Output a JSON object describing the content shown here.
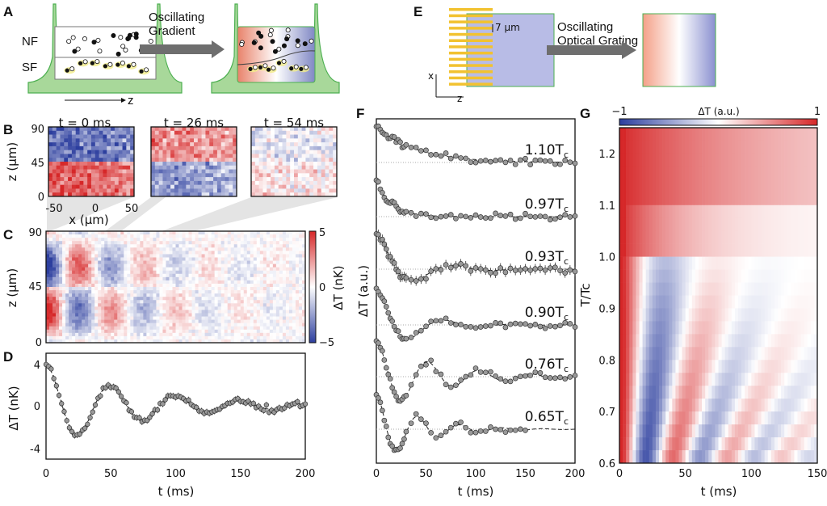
{
  "panels": {
    "A": {
      "label": "A",
      "nf": "NF",
      "sf": "SF",
      "axis": "z",
      "arrow_text_1": "Oscillating",
      "arrow_text_2": "Gradient"
    },
    "B": {
      "label": "B",
      "titles": [
        "t = 0 ms",
        "t = 26 ms",
        "t = 54 ms"
      ],
      "yticks": [
        "90",
        "45",
        "0"
      ],
      "xticks": [
        "-50",
        "0",
        "50"
      ],
      "ylabel": "z (μm)",
      "xlabel": "x (μm)"
    },
    "C": {
      "label": "C",
      "yticks": [
        "90",
        "45",
        "0"
      ],
      "ylabel": "z (μm)",
      "cbar_ticks": [
        "5",
        "0",
        "−5"
      ],
      "cbar_label": "ΔT (nK)"
    },
    "D": {
      "label": "D",
      "yticks": [
        "4",
        "0",
        "-4"
      ],
      "xticks": [
        "0",
        "50",
        "100",
        "150",
        "200"
      ],
      "ylabel": "ΔT (nK)",
      "xlabel": "t (ms)"
    },
    "E": {
      "label": "E",
      "spacing": "7 μm",
      "arrow_text_1": "Oscillating",
      "arrow_text_2": "Optical Grating",
      "axis_x": "x",
      "axis_z": "z"
    },
    "F": {
      "label": "F",
      "ylabel": "ΔT (a.u.)",
      "xlabel": "t (ms)",
      "xticks": [
        "0",
        "50",
        "100",
        "150",
        "200"
      ]
    },
    "G": {
      "label": "G",
      "cbar_min": "−1",
      "cbar_max": "1",
      "cbar_label": "ΔT (a.u.)",
      "ylabel": "T/Tc",
      "xlabel": "t (ms)",
      "xticks": [
        "0",
        "50",
        "100",
        "150"
      ],
      "yticks": [
        "1.2",
        "1.1",
        "1.0",
        "0.9",
        "0.8",
        "0.7",
        "0.6"
      ]
    }
  },
  "colors": {
    "red": "#d62728",
    "blue": "#2c3e9e",
    "green": "#5cb85c",
    "marker": "#888888"
  },
  "chart_data": [
    {
      "panel": "D",
      "type": "scatter",
      "title": "",
      "xlabel": "t (ms)",
      "ylabel": "ΔT (nK)",
      "xlim": [
        0,
        200
      ],
      "ylim": [
        -5,
        5
      ],
      "model": {
        "form": "damped cosine",
        "amplitude": 4.0,
        "decay_ms": 70,
        "period_ms": 50,
        "offset": 0
      },
      "key_points": [
        {
          "t": 0,
          "y": 4
        },
        {
          "t": 28,
          "y": -2.7
        },
        {
          "t": 58,
          "y": 1.7
        },
        {
          "t": 108,
          "y": 0.8
        },
        {
          "t": 155,
          "y": 0.4
        }
      ]
    },
    {
      "panel": "F",
      "type": "scatter",
      "xlabel": "t (ms)",
      "ylabel": "ΔT (a.u.)",
      "xlim": [
        0,
        200
      ],
      "series": [
        {
          "name": "1.10Tc",
          "label_main": "1.10T",
          "label_sub": "c",
          "amplitude": 1.0,
          "decay_ms": 40,
          "period_ms": 0,
          "error_bars": false
        },
        {
          "name": "0.97Tc",
          "label_main": "0.97T",
          "label_sub": "c",
          "amplitude": 1.0,
          "decay_ms": 15,
          "period_ms": 0,
          "error_bars": false
        },
        {
          "name": "0.93Tc",
          "label_main": "0.93T",
          "label_sub": "c",
          "amplitude": 1.0,
          "decay_ms": 35,
          "period_ms": 80,
          "error_bars": true
        },
        {
          "name": "0.90Tc",
          "label_main": "0.90T",
          "label_sub": "c",
          "amplitude": 1.0,
          "decay_ms": 35,
          "period_ms": 70,
          "error_bars": false
        },
        {
          "name": "0.76Tc",
          "label_main": "0.76T",
          "label_sub": "c",
          "amplitude": 1.0,
          "decay_ms": 60,
          "period_ms": 52,
          "error_bars": false
        },
        {
          "name": "0.65Tc",
          "label_main": "0.65T",
          "label_sub": "c",
          "amplitude": 1.0,
          "decay_ms": 40,
          "period_ms": 42,
          "error_bars": false
        }
      ]
    },
    {
      "panel": "G",
      "type": "heatmap",
      "xlabel": "t (ms)",
      "ylabel": "T/Tc",
      "xlim": [
        0,
        150
      ],
      "ylim": [
        0.6,
        1.25
      ],
      "color_range": [
        -1,
        1
      ]
    }
  ]
}
